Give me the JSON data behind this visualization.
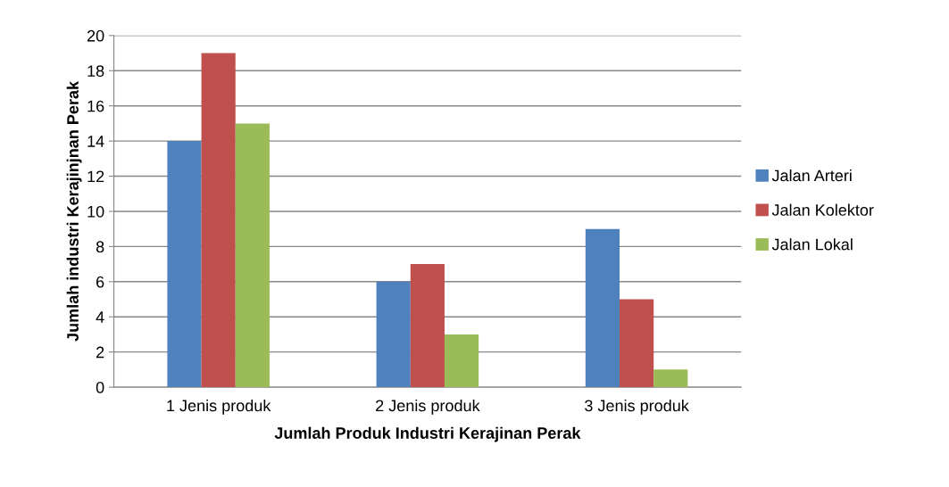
{
  "chart_data": {
    "type": "bar",
    "xlabel": "Jumlah Produk Industri Kerajinan Perak",
    "ylabel": "Jumlah industri Kerajinjnan Perak",
    "categories": [
      "1 Jenis produk",
      "2 Jenis produk",
      "3 Jenis produk"
    ],
    "series": [
      {
        "name": "Jalan Arteri",
        "color": "#4f81bd",
        "values": [
          14,
          6,
          9
        ]
      },
      {
        "name": "Jalan Kolektor",
        "color": "#c0504d",
        "values": [
          19,
          7,
          5
        ]
      },
      {
        "name": "Jalan Lokal",
        "color": "#9bbb59",
        "values": [
          15,
          3,
          1
        ]
      }
    ],
    "ylim": [
      0,
      20
    ],
    "yticks": [
      0,
      2,
      4,
      6,
      8,
      10,
      12,
      14,
      16,
      18,
      20
    ],
    "grid": "y",
    "legend": "right"
  }
}
